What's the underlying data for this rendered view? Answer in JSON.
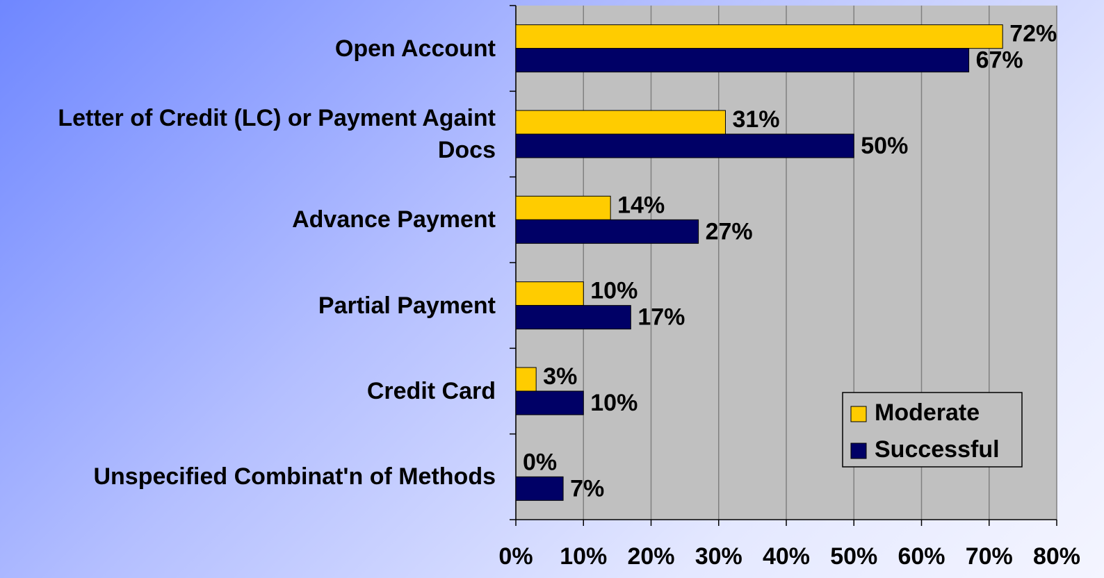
{
  "chart_data": {
    "type": "barh",
    "categories": [
      "Open Account",
      "Letter of Credit (LC) or Payment Againt Docs",
      "Advance Payment",
      "Partial Payment",
      "Credit Card",
      "Unspecified Combinat'n of Methods"
    ],
    "series": [
      {
        "name": "Moderate",
        "color": "#ffcc00",
        "values": [
          72,
          31,
          14,
          10,
          3,
          0
        ],
        "value_labels": [
          "72%",
          "31%",
          "14%",
          "10%",
          "3%",
          "0%"
        ]
      },
      {
        "name": "Successful",
        "color": "#000066",
        "values": [
          67,
          50,
          27,
          17,
          10,
          7
        ],
        "value_labels": [
          "67%",
          "50%",
          "27%",
          "17%",
          "10%",
          "7%"
        ]
      }
    ],
    "xlim": [
      0,
      80
    ],
    "xticks": [
      {
        "value": 0,
        "label": "0%"
      },
      {
        "value": 10,
        "label": "10%"
      },
      {
        "value": 20,
        "label": "20%"
      },
      {
        "value": 30,
        "label": "30%"
      },
      {
        "value": 40,
        "label": "40%"
      },
      {
        "value": 50,
        "label": "50%"
      },
      {
        "value": 60,
        "label": "60%"
      },
      {
        "value": 70,
        "label": "70%"
      },
      {
        "value": 80,
        "label": "80%"
      }
    ],
    "grid": true,
    "legend": "lower right"
  }
}
